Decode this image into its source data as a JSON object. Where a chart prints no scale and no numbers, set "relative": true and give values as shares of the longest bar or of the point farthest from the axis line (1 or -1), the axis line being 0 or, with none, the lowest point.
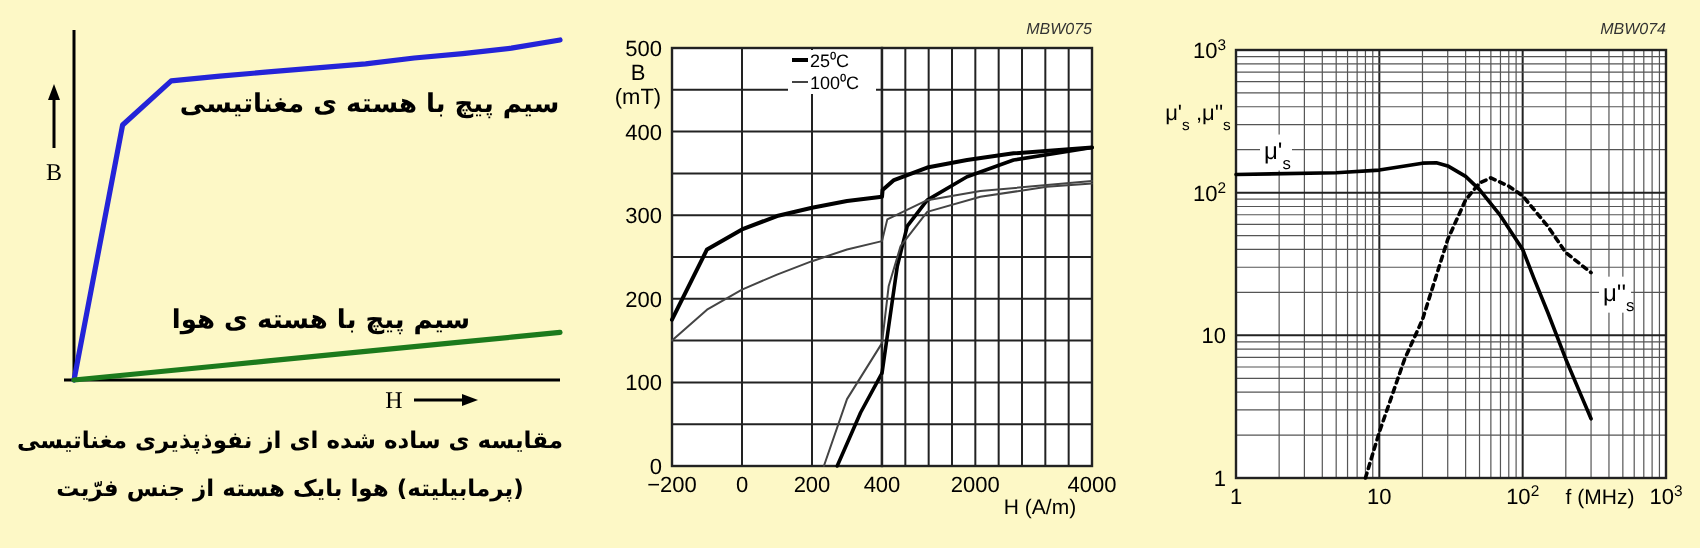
{
  "chart_data": [
    {
      "type": "line",
      "relative": true,
      "xlabel": "H",
      "ylabel": "B",
      "categories": [
        null,
        null,
        null,
        null,
        null,
        null,
        null,
        null,
        null,
        null,
        null
      ],
      "series": [
        {
          "name": "سیم پیچ با هسته ی مغناتیسی",
          "color": "#2424d8",
          "values": [
            0,
            0.75,
            0.88,
            0.894,
            0.906,
            0.918,
            0.93,
            0.947,
            0.96,
            0.976,
            1
          ]
        },
        {
          "name": "سیم پیچ با هسته ی هوا",
          "color": "#1c7a1c",
          "values": [
            0,
            0.014,
            0.028,
            0.042,
            0.056,
            0.07,
            0.084,
            0.098,
            0.112,
            0.126,
            0.14
          ]
        }
      ],
      "annotations": [
        "مقایسه ی ساده شده ای از نفوذپذیری مغناتیسی (پرمابیلیته) هوا بایک هسته از جنس فرّیت"
      ]
    },
    {
      "type": "line",
      "ylabel": "B\n(mT)",
      "xlim": [
        -200,
        400
      ],
      "ylim": [
        0,
        500
      ],
      "xticks": [
        -200,
        0,
        200,
        400
      ],
      "yticks": [
        0,
        {
          "value": 50,
          "label": null
        },
        100,
        {
          "value": 150,
          "label": null
        },
        200,
        {
          "value": 250,
          "label": null
        },
        300,
        {
          "value": 350,
          "label": null
        },
        400,
        {
          "value": 450,
          "label": null
        },
        500
      ],
      "grid": true,
      "legend": "top right",
      "series": [
        {
          "name": "25⁰C",
          "color": "#000000",
          "x": [
            -200,
            -100,
            0,
            100,
            200,
            300,
            400
          ],
          "values": [
            175,
            259,
            283,
            299,
            309,
            317,
            322
          ]
        },
        {
          "color": "#000000",
          "x": [
            272,
            339,
            400
          ],
          "values": [
            0,
            64,
            111
          ]
        },
        {
          "name": "100⁰C",
          "color": "#444444",
          "x": [
            -200,
            -100,
            0,
            100,
            200,
            300,
            400
          ],
          "values": [
            150,
            187,
            211,
            229,
            245,
            259,
            269
          ]
        },
        {
          "color": "#444444",
          "x": [
            234,
            300,
            400
          ],
          "values": [
            0,
            80,
            147
          ]
        }
      ]
    },
    {
      "type": "line",
      "xlabel": "H (A/m)",
      "xlim": [
        400,
        4000
      ],
      "ylim": [
        0,
        500
      ],
      "tick_labels": "x",
      "xticks": [
        {
          "value": 400,
          "label": null
        },
        {
          "value": 800,
          "label": null
        },
        {
          "value": 1200,
          "label": null
        },
        {
          "value": 1600,
          "label": null
        },
        2000,
        {
          "value": 2400,
          "label": null
        },
        {
          "value": 2800,
          "label": null
        },
        {
          "value": 3200,
          "label": null
        },
        {
          "value": 3600,
          "label": null
        },
        4000
      ],
      "yticks": [
        {
          "value": 0,
          "label": null
        },
        {
          "value": 50,
          "label": null
        },
        {
          "value": 100,
          "label": null
        },
        {
          "value": 150,
          "label": null
        },
        {
          "value": 200,
          "label": null
        },
        {
          "value": 250,
          "label": null
        },
        {
          "value": 300,
          "label": null
        },
        {
          "value": 350,
          "label": null
        },
        {
          "value": 400,
          "label": null
        },
        {
          "value": 450,
          "label": null
        },
        {
          "value": 500,
          "label": null
        }
      ],
      "grid": true,
      "annotations": [
        "MBW075"
      ],
      "series": [
        {
          "color": "#000000",
          "x": [
            400,
            410,
            605,
            1175,
            1858,
            2655,
            4000
          ],
          "values": [
            322,
            330,
            342,
            357,
            366,
            374,
            381
          ]
        },
        {
          "color": "#000000",
          "x": [
            400,
            514,
            662,
            833,
            1175,
            1858,
            2655,
            4000
          ],
          "values": [
            111,
            167,
            239,
            287,
            318,
            346,
            366,
            381
          ]
        },
        {
          "color": "#444444",
          "x": [
            400,
            491,
            1175,
            2086,
            3225,
            4000
          ],
          "values": [
            269,
            295,
            318,
            329,
            336,
            341
          ]
        },
        {
          "color": "#444444",
          "x": [
            400,
            514,
            719,
            1175,
            2086,
            3225,
            4000
          ],
          "values": [
            147,
            215,
            263,
            304,
            322,
            334,
            338
          ]
        }
      ]
    },
    {
      "type": "line",
      "log": "xy",
      "xlabel": "f (MHz)",
      "ylabel": "μ'$_{s}$ ,μ''$_{s}$",
      "xlim": [
        1,
        1000
      ],
      "ylim": [
        1,
        1000
      ],
      "xticks": [
        1,
        10,
        {
          "value": 100,
          "label": "10$^{2}$"
        },
        {
          "value": 1000,
          "label": "10$^{3}$"
        }
      ],
      "yticks": [
        1,
        10,
        {
          "value": 100,
          "label": "10$^{2}$"
        },
        {
          "value": 1000,
          "label": "10$^{3}$"
        }
      ],
      "grid": true,
      "annotations": [
        "MBW074"
      ],
      "series": [
        {
          "name": "μ'$_{s}$",
          "color": "#000000",
          "line_style": "solid",
          "x": [
            1,
            5,
            10,
            20,
            25,
            30,
            40,
            50,
            70,
            100,
            120,
            150,
            200,
            250,
            300
          ],
          "values": [
            134,
            138,
            144,
            161,
            162,
            154,
            130,
            105,
            69,
            40,
            25,
            14.4,
            6.8,
            4,
            2.6
          ]
        },
        {
          "name": "μ''$_{s}$",
          "color": "#000000",
          "line_style": "dotted",
          "x": [
            8,
            10,
            15,
            20,
            30,
            40,
            50,
            60,
            80,
            100,
            150,
            200,
            300
          ],
          "values": [
            1,
            2.1,
            6.8,
            12.9,
            47,
            89,
            117,
            127,
            111,
            95,
            58,
            38,
            27.5
          ]
        }
      ]
    }
  ]
}
